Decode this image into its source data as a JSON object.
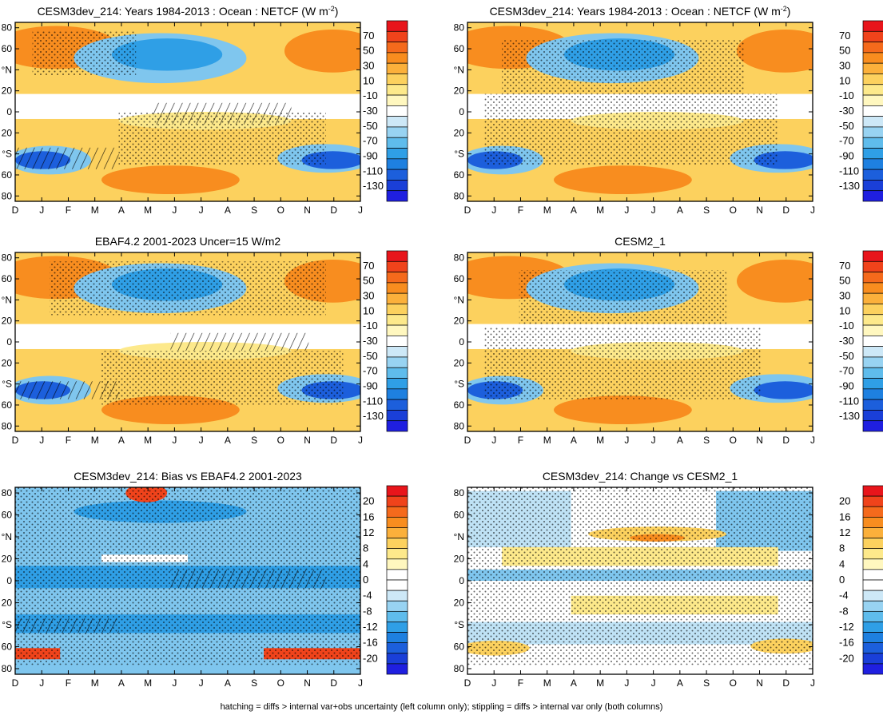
{
  "footer": "hatching = diffs > internal var+obs uncertainty (left column only); stippling = diffs > internal var only (both columns)",
  "chart_data": [
    {
      "type": "heatmap",
      "title": "CESM3dev_214: Years 1984-2013 : Ocean : NETCF (W m",
      "title_units_sup": "-2",
      "title_units_close": ")",
      "x_ticks": [
        "D",
        "J",
        "F",
        "M",
        "A",
        "M",
        "J",
        "J",
        "A",
        "S",
        "O",
        "N",
        "D",
        "J"
      ],
      "y_ticks": [
        "80",
        "60",
        "°N",
        "20",
        "0",
        "20",
        "°S",
        "60",
        "80"
      ],
      "colorbar": [
        "70",
        "50",
        "30",
        "10",
        "-10",
        "-30",
        "-50",
        "-70",
        "-90",
        "-110",
        "-130"
      ],
      "colorbar_colors": [
        "#e8151b",
        "#f0431b",
        "#f56a1c",
        "#f88d1f",
        "#fbb03b",
        "#fcd15e",
        "#fde98b",
        "#fff7bf",
        "#ffffff",
        "#cde8f7",
        "#98d3f2",
        "#5fbcec",
        "#2f9fe6",
        "#1e80e0",
        "#1c5fdc",
        "#1a3fd8",
        "#1f1fe0"
      ]
    },
    {
      "type": "heatmap",
      "title": "CESM3dev_214: Years 1984-2013 : Ocean : NETCF (W m",
      "title_units_sup": "-2",
      "title_units_close": ")",
      "x_ticks": [
        "D",
        "J",
        "F",
        "M",
        "A",
        "M",
        "J",
        "J",
        "A",
        "S",
        "O",
        "N",
        "D",
        "J"
      ],
      "y_ticks": [
        "80",
        "60",
        "°N",
        "20",
        "0",
        "20",
        "°S",
        "60",
        "80"
      ],
      "colorbar": [
        "70",
        "50",
        "30",
        "10",
        "-10",
        "-30",
        "-50",
        "-70",
        "-90",
        "-110",
        "-130"
      ]
    },
    {
      "type": "heatmap",
      "title": "EBAF4.2 2001-2023 Uncer=15 W/m2",
      "x_ticks": [
        "D",
        "J",
        "F",
        "M",
        "A",
        "M",
        "J",
        "J",
        "A",
        "S",
        "O",
        "N",
        "D",
        "J"
      ],
      "y_ticks": [
        "80",
        "60",
        "°N",
        "20",
        "0",
        "20",
        "°S",
        "60",
        "80"
      ],
      "colorbar": [
        "70",
        "50",
        "30",
        "10",
        "-10",
        "-30",
        "-50",
        "-70",
        "-90",
        "-110",
        "-130"
      ]
    },
    {
      "type": "heatmap",
      "title": "CESM2_1",
      "x_ticks": [
        "D",
        "J",
        "F",
        "M",
        "A",
        "M",
        "J",
        "J",
        "A",
        "S",
        "O",
        "N",
        "D",
        "J"
      ],
      "y_ticks": [
        "80",
        "60",
        "°N",
        "20",
        "0",
        "20",
        "°S",
        "60",
        "80"
      ],
      "colorbar": [
        "70",
        "50",
        "30",
        "10",
        "-10",
        "-30",
        "-50",
        "-70",
        "-90",
        "-110",
        "-130"
      ]
    },
    {
      "type": "heatmap",
      "title": "CESM3dev_214: Bias vs EBAF4.2 2001-2023",
      "x_ticks": [
        "D",
        "J",
        "F",
        "M",
        "A",
        "M",
        "J",
        "J",
        "A",
        "S",
        "O",
        "N",
        "D",
        "J"
      ],
      "y_ticks": [
        "80",
        "60",
        "°N",
        "20",
        "0",
        "20",
        "°S",
        "60",
        "80"
      ],
      "colorbar": [
        "20",
        "16",
        "12",
        "8",
        "4",
        "0",
        "-4",
        "-8",
        "-12",
        "-16",
        "-20"
      ]
    },
    {
      "type": "heatmap",
      "title": "CESM3dev_214: Change vs CESM2_1",
      "x_ticks": [
        "D",
        "J",
        "F",
        "M",
        "A",
        "M",
        "J",
        "J",
        "A",
        "S",
        "O",
        "N",
        "D",
        "J"
      ],
      "y_ticks": [
        "80",
        "60",
        "°N",
        "20",
        "0",
        "20",
        "°S",
        "60",
        "80"
      ],
      "colorbar": [
        "20",
        "16",
        "12",
        "8",
        "4",
        "0",
        "-4",
        "-8",
        "-12",
        "-16",
        "-20"
      ]
    }
  ]
}
